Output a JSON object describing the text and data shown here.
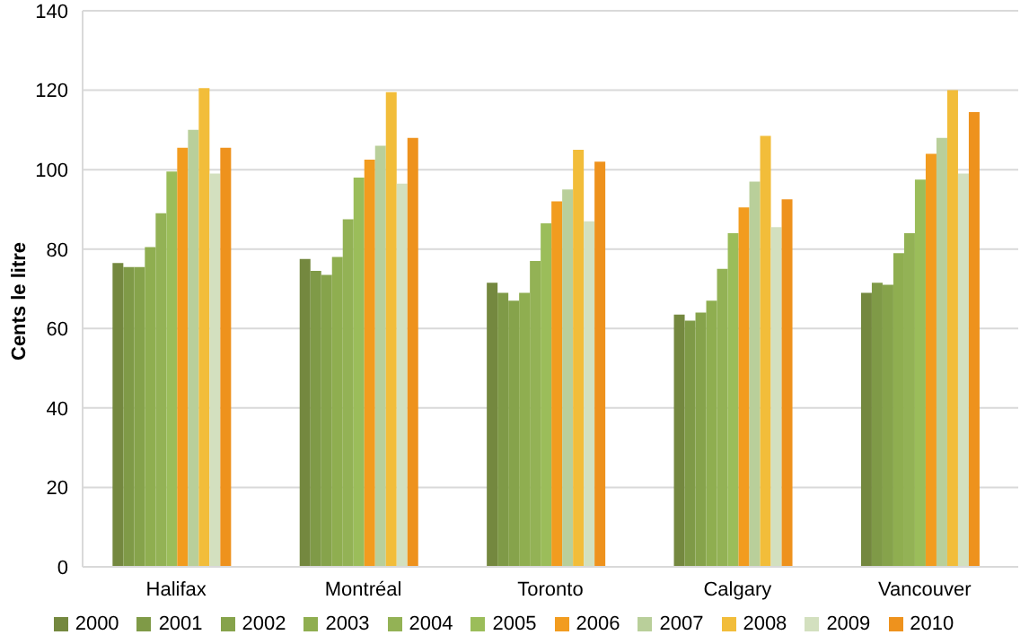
{
  "chart_data": {
    "type": "bar",
    "ylabel": "Cents le litre",
    "categories": [
      "Halifax",
      "Montréal",
      "Toronto",
      "Calgary",
      "Vancouver"
    ],
    "series": [
      {
        "name": "2000",
        "color": "#74883f",
        "values": [
          76.5,
          77.5,
          71.5,
          63.5,
          69
        ]
      },
      {
        "name": "2001",
        "color": "#7f9a47",
        "values": [
          75.5,
          74.5,
          69,
          62,
          71.5
        ]
      },
      {
        "name": "2002",
        "color": "#86a34b",
        "values": [
          75.5,
          73.5,
          67,
          64,
          71
        ]
      },
      {
        "name": "2003",
        "color": "#8fae50",
        "values": [
          80.5,
          78,
          69,
          67,
          79
        ]
      },
      {
        "name": "2004",
        "color": "#93b255",
        "values": [
          89,
          87.5,
          77,
          75,
          84
        ]
      },
      {
        "name": "2005",
        "color": "#9bbd5a",
        "values": [
          99.5,
          98,
          86.5,
          84,
          97.5
        ]
      },
      {
        "name": "2006",
        "color": "#f29c1f",
        "values": [
          105.5,
          102.5,
          92,
          90.5,
          104
        ]
      },
      {
        "name": "2007",
        "color": "#b9cf9a",
        "values": [
          110,
          106,
          95,
          97,
          108
        ]
      },
      {
        "name": "2008",
        "color": "#f2bd3a",
        "values": [
          120.5,
          119.5,
          105,
          108.5,
          120
        ]
      },
      {
        "name": "2009",
        "color": "#d3e0bf",
        "values": [
          99,
          96.5,
          87,
          85.5,
          99
        ]
      },
      {
        "name": "2010",
        "color": "#ee921d",
        "values": [
          105.5,
          108,
          102,
          92.5,
          114.5
        ]
      }
    ],
    "ylim": [
      0,
      140
    ],
    "yticks": [
      0,
      20,
      40,
      60,
      80,
      100,
      120,
      140
    ],
    "grid": "y",
    "legend": "bottom"
  }
}
